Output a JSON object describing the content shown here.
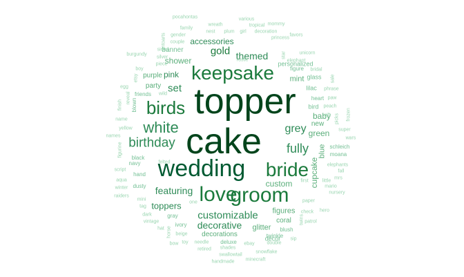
{
  "palette": {
    "darkest": "#00441b",
    "dark": "#005a32",
    "medium_dark": "#1b7a3c",
    "medium": "#2e8b57",
    "light": "#5aae7a",
    "lighter": "#74c095",
    "lightest": "#99d5b0"
  },
  "words": [
    {
      "text": "cake",
      "weight": 100
    },
    {
      "text": "topper",
      "weight": 92
    },
    {
      "text": "wedding",
      "weight": 72
    },
    {
      "text": "groom",
      "weight": 58
    },
    {
      "text": "love",
      "weight": 55
    },
    {
      "text": "bride",
      "weight": 52
    },
    {
      "text": "keepsake",
      "weight": 50
    },
    {
      "text": "birds",
      "weight": 46
    },
    {
      "text": "white",
      "weight": 40
    },
    {
      "text": "birthday",
      "weight": 36
    },
    {
      "text": "fully",
      "weight": 33
    },
    {
      "text": "customizable",
      "weight": 30
    },
    {
      "text": "grey",
      "weight": 30
    },
    {
      "text": "gold",
      "weight": 28
    },
    {
      "text": "set",
      "weight": 28
    },
    {
      "text": "themed",
      "weight": 27
    },
    {
      "text": "featuring",
      "weight": 26
    },
    {
      "text": "decorative",
      "weight": 26
    },
    {
      "text": "toppers",
      "weight": 25
    },
    {
      "text": "accessories",
      "weight": 24
    },
    {
      "text": "pink",
      "weight": 24
    },
    {
      "text": "green",
      "weight": 24
    },
    {
      "text": "baby",
      "weight": 23
    },
    {
      "text": "custom",
      "weight": 22
    },
    {
      "text": "shower",
      "weight": 22
    },
    {
      "text": "cupcake",
      "weight": 22
    },
    {
      "text": "figures",
      "weight": 21
    },
    {
      "text": "glitter",
      "weight": 20
    },
    {
      "text": "blue",
      "weight": 20
    },
    {
      "text": "mint",
      "weight": 19
    },
    {
      "text": "party",
      "weight": 18
    },
    {
      "text": "purple",
      "weight": 18
    },
    {
      "text": "coral",
      "weight": 18
    },
    {
      "text": "decorations",
      "weight": 17
    },
    {
      "text": "new",
      "weight": 17
    },
    {
      "text": "banner",
      "weight": 17
    },
    {
      "text": "personalized",
      "weight": 16
    },
    {
      "text": "decor",
      "weight": 16
    },
    {
      "text": "glass",
      "weight": 16
    },
    {
      "text": "bird",
      "weight": 16
    },
    {
      "text": "lilac",
      "weight": 15
    },
    {
      "text": "figure",
      "weight": 15
    },
    {
      "text": "schleich",
      "weight": 15
    },
    {
      "text": "moana",
      "weight": 14
    },
    {
      "text": "dusty",
      "weight": 14
    },
    {
      "text": "ivory",
      "weight": 14
    },
    {
      "text": "heart",
      "weight": 14
    },
    {
      "text": "black",
      "weight": 14
    },
    {
      "text": "hand",
      "weight": 13
    },
    {
      "text": "navy",
      "weight": 13
    },
    {
      "text": "blush",
      "weight": 13
    },
    {
      "text": "twinkle",
      "weight": 13
    },
    {
      "text": "deluxe",
      "weight": 13
    },
    {
      "text": "gray",
      "weight": 13
    },
    {
      "text": "friends",
      "weight": 13
    },
    {
      "text": "blown",
      "weight": 13
    },
    {
      "text": "elephant",
      "weight": 12
    },
    {
      "text": "bridal",
      "weight": 12
    },
    {
      "text": "unicorn",
      "weight": 12
    },
    {
      "text": "princess",
      "weight": 12
    },
    {
      "text": "decoration",
      "weight": 12
    },
    {
      "text": "girl",
      "weight": 12
    },
    {
      "text": "plum",
      "weight": 12
    },
    {
      "text": "nest",
      "weight": 12
    },
    {
      "text": "tropical",
      "weight": 12
    },
    {
      "text": "mommy",
      "weight": 12
    },
    {
      "text": "favors",
      "weight": 12
    },
    {
      "text": "gender",
      "weight": 12
    },
    {
      "text": "family",
      "weight": 12
    },
    {
      "text": "couple",
      "weight": 12
    },
    {
      "text": "rustic",
      "weight": 12
    },
    {
      "text": "silver",
      "weight": 12
    },
    {
      "text": "star",
      "weight": 12
    },
    {
      "text": "piece",
      "weight": 12
    },
    {
      "text": "boy",
      "weight": 12
    },
    {
      "text": "etsy",
      "weight": 12
    },
    {
      "text": "egg",
      "weight": 12
    },
    {
      "text": "wild",
      "weight": 12
    },
    {
      "text": "reveal",
      "weight": 12
    },
    {
      "text": "finish",
      "weight": 12
    },
    {
      "text": "name",
      "weight": 12
    },
    {
      "text": "yellow",
      "weight": 12
    },
    {
      "text": "names",
      "weight": 12
    },
    {
      "text": "figurine",
      "weight": 12
    },
    {
      "text": "felted",
      "weight": 12
    },
    {
      "text": "script",
      "weight": 12
    },
    {
      "text": "aqua",
      "weight": 12
    },
    {
      "text": "winter",
      "weight": 12
    },
    {
      "text": "raiders",
      "weight": 12
    },
    {
      "text": "mini",
      "weight": 12
    },
    {
      "text": "tag",
      "weight": 12
    },
    {
      "text": "dark",
      "weight": 12
    },
    {
      "text": "vintage",
      "weight": 12
    },
    {
      "text": "hat",
      "weight": 12
    },
    {
      "text": "horse",
      "weight": 12
    },
    {
      "text": "beige",
      "weight": 12
    },
    {
      "text": "bow",
      "weight": 12
    },
    {
      "text": "toy",
      "weight": 12
    },
    {
      "text": "needle",
      "weight": 12
    },
    {
      "text": "retired",
      "weight": 12
    },
    {
      "text": "shades",
      "weight": 12
    },
    {
      "text": "swallowtail",
      "weight": 12
    },
    {
      "text": "handmade",
      "weight": 12
    },
    {
      "text": "minecraft",
      "weight": 12
    },
    {
      "text": "snowflake",
      "weight": 12
    },
    {
      "text": "ebay",
      "weight": 12
    },
    {
      "text": "double",
      "weight": 12
    },
    {
      "text": "sip",
      "weight": 12
    },
    {
      "text": "patrol",
      "weight": 12
    },
    {
      "text": "hero",
      "weight": 12
    },
    {
      "text": "check",
      "weight": 12
    },
    {
      "text": "mrs",
      "weight": 12
    },
    {
      "text": "nursery",
      "weight": 12
    },
    {
      "text": "paper",
      "weight": 12
    },
    {
      "text": "mario",
      "weight": 12
    },
    {
      "text": "little",
      "weight": 12
    },
    {
      "text": "first",
      "weight": 12
    },
    {
      "text": "elephants",
      "weight": 12
    },
    {
      "text": "fall",
      "weight": 12
    },
    {
      "text": "wars",
      "weight": 12
    },
    {
      "text": "super",
      "weight": 12
    },
    {
      "text": "picks",
      "weight": 12
    },
    {
      "text": "frozen",
      "weight": 12
    },
    {
      "text": "gift",
      "weight": 12
    },
    {
      "text": "peach",
      "weight": 12
    },
    {
      "text": "paw",
      "weight": 12
    },
    {
      "text": "phrase",
      "weight": 12
    },
    {
      "text": "sale",
      "weight": 12
    },
    {
      "text": "pocahontas",
      "weight": 12
    },
    {
      "text": "wreath",
      "weight": 12
    },
    {
      "text": "various",
      "weight": 12
    },
    {
      "text": "antoarts",
      "weight": 12
    },
    {
      "text": "burgundy",
      "weight": 12
    },
    {
      "text": "sided",
      "weight": 12
    },
    {
      "text": "one",
      "weight": 12
    },
    {
      "text": "twins",
      "weight": 12
    }
  ]
}
